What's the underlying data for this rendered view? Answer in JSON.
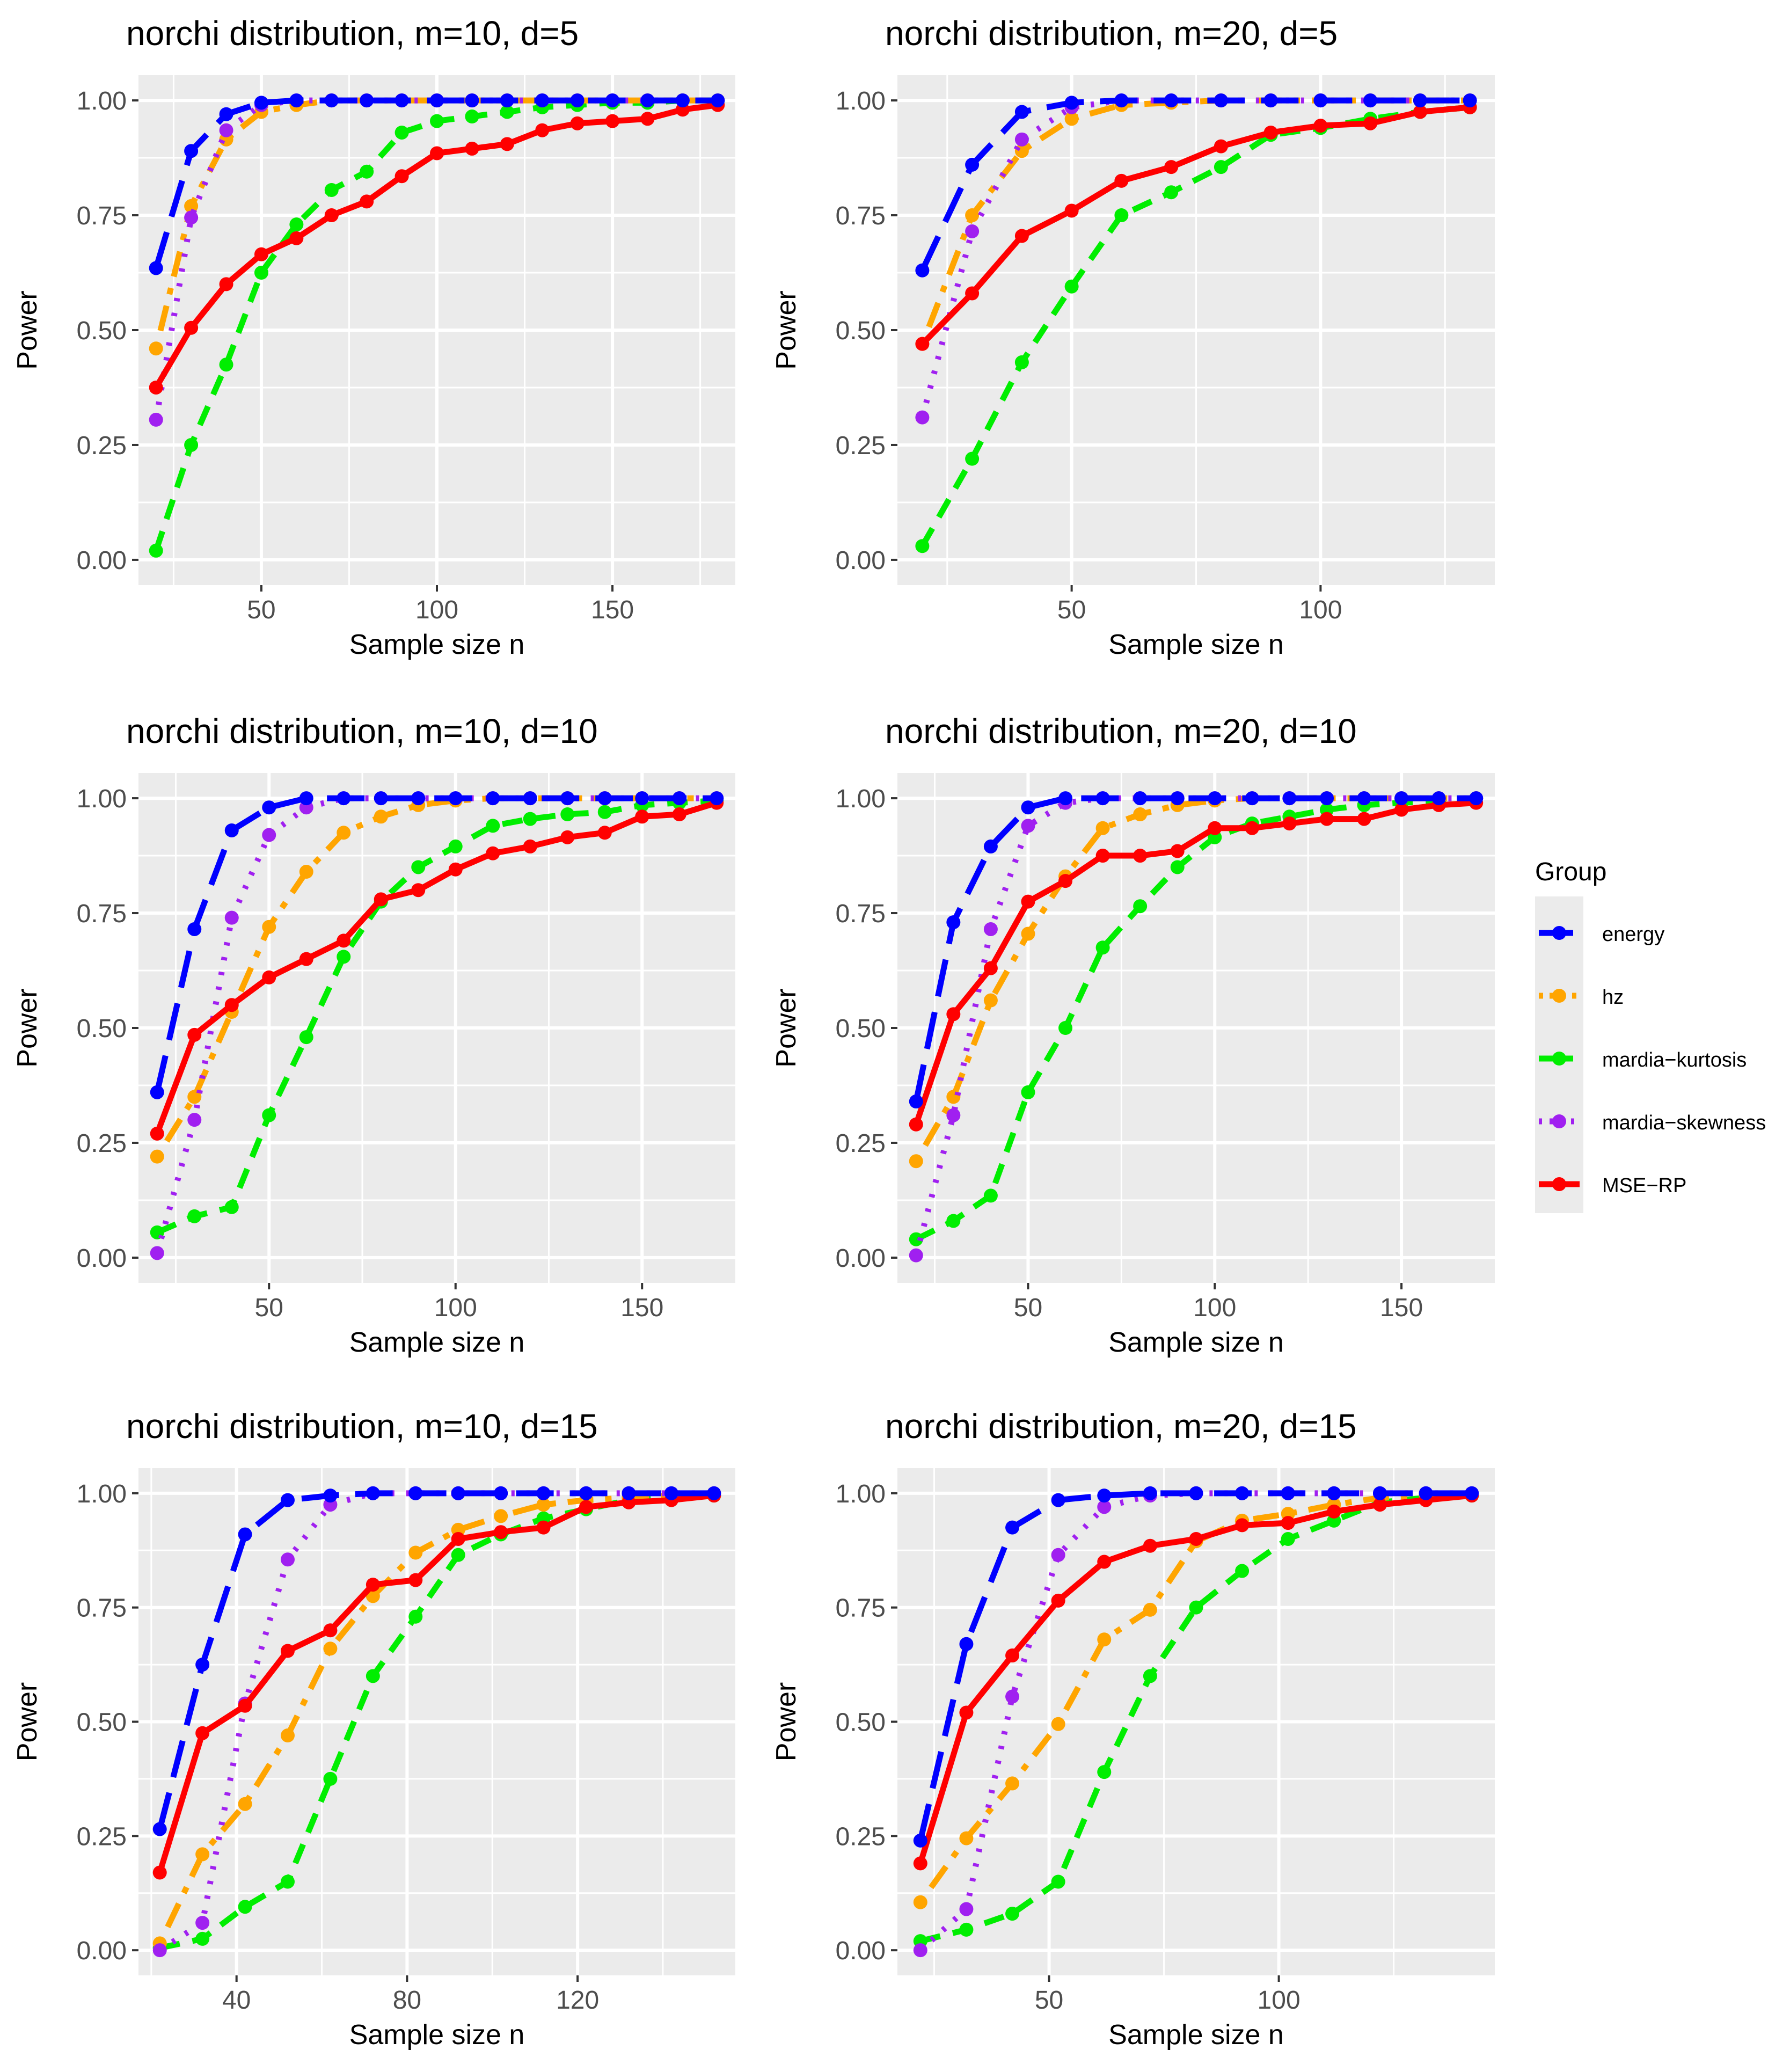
{
  "legend": {
    "title": "Group",
    "entries": [
      {
        "label": "energy",
        "color": "#0000ff",
        "dash": "long-dash"
      },
      {
        "label": "hz",
        "color": "#ffa500",
        "dash": "dot-dash"
      },
      {
        "label": "mardia−kurtosis",
        "color": "#00ee00",
        "dash": "dashed"
      },
      {
        "label": "mardia−skewness",
        "color": "#a020f0",
        "dash": "dotted"
      },
      {
        "label": "MSE−RP",
        "color": "#ff0000",
        "dash": "solid"
      }
    ]
  },
  "chart_data": [
    {
      "type": "line",
      "title": "norchi distribution, m=10, d=5",
      "xlabel": "Sample size n",
      "ylabel": "Power",
      "xlim": [
        15,
        185
      ],
      "ylim": [
        0,
        1
      ],
      "xticks": [
        50,
        100,
        150
      ],
      "xtick_labels": [
        "50",
        "100",
        "150"
      ],
      "yticks": [
        0,
        0.25,
        0.5,
        0.75,
        1
      ],
      "ytick_labels": [
        "0.00",
        "0.25",
        "0.50",
        "0.75",
        "1.00"
      ],
      "grid": true,
      "x": [
        20,
        30,
        40,
        50,
        60,
        70,
        80,
        90,
        100,
        110,
        120,
        130,
        140,
        150,
        160,
        170,
        180
      ],
      "series": [
        {
          "name": "energy",
          "values": [
            0.635,
            0.89,
            0.97,
            0.995,
            1,
            1,
            1,
            1,
            1,
            1,
            1,
            1,
            1,
            1,
            1,
            1,
            1
          ]
        },
        {
          "name": "hz",
          "values": [
            0.46,
            0.77,
            0.915,
            0.975,
            0.99,
            1,
            1,
            1,
            1,
            1,
            1,
            1,
            1,
            1,
            1,
            1,
            1
          ]
        },
        {
          "name": "mardia−kurtosis",
          "values": [
            0.02,
            0.25,
            0.425,
            0.625,
            0.73,
            0.805,
            0.845,
            0.93,
            0.955,
            0.965,
            0.975,
            0.985,
            0.99,
            0.995,
            0.995,
            1,
            1
          ]
        },
        {
          "name": "mardia−skewness",
          "values": [
            0.305,
            0.745,
            0.935,
            0.99,
            1,
            1,
            1,
            1,
            1,
            1,
            1,
            1,
            1,
            1,
            1,
            1,
            1
          ]
        },
        {
          "name": "MSE−RP",
          "values": [
            0.375,
            0.505,
            0.6,
            0.665,
            0.7,
            0.75,
            0.78,
            0.835,
            0.885,
            0.895,
            0.905,
            0.935,
            0.95,
            0.955,
            0.96,
            0.98,
            0.99
          ]
        }
      ]
    },
    {
      "type": "line",
      "title": "norchi distribution, m=20, d=5",
      "xlabel": "Sample size n",
      "ylabel": "Power",
      "xlim": [
        15,
        135
      ],
      "ylim": [
        0,
        1
      ],
      "xticks": [
        50,
        100
      ],
      "xtick_labels": [
        "50",
        "100"
      ],
      "yticks": [
        0,
        0.25,
        0.5,
        0.75,
        1
      ],
      "ytick_labels": [
        "0.00",
        "0.25",
        "0.50",
        "0.75",
        "1.00"
      ],
      "grid": true,
      "x": [
        20,
        30,
        40,
        50,
        60,
        70,
        80,
        90,
        100,
        110,
        120,
        130
      ],
      "series": [
        {
          "name": "energy",
          "values": [
            0.63,
            0.86,
            0.975,
            0.995,
            1,
            1,
            1,
            1,
            1,
            1,
            1,
            1
          ]
        },
        {
          "name": "hz",
          "values": [
            0.47,
            0.75,
            0.89,
            0.96,
            0.99,
            0.995,
            1,
            1,
            1,
            1,
            1,
            1
          ]
        },
        {
          "name": "mardia−kurtosis",
          "values": [
            0.03,
            0.22,
            0.43,
            0.595,
            0.75,
            0.8,
            0.855,
            0.925,
            0.94,
            0.96,
            0.975,
            0.985
          ]
        },
        {
          "name": "mardia−skewness",
          "values": [
            0.31,
            0.715,
            0.915,
            0.985,
            1,
            1,
            1,
            1,
            1,
            1,
            1,
            1
          ]
        },
        {
          "name": "MSE−RP",
          "values": [
            0.47,
            0.58,
            0.705,
            0.76,
            0.825,
            0.855,
            0.9,
            0.93,
            0.945,
            0.95,
            0.975,
            0.985
          ]
        }
      ]
    },
    {
      "type": "line",
      "title": "norchi distribution, m=10, d=10",
      "xlabel": "Sample size n",
      "ylabel": "Power",
      "xlim": [
        15,
        175
      ],
      "ylim": [
        0,
        1
      ],
      "xticks": [
        50,
        100,
        150
      ],
      "xtick_labels": [
        "50",
        "100",
        "150"
      ],
      "yticks": [
        0,
        0.25,
        0.5,
        0.75,
        1
      ],
      "ytick_labels": [
        "0.00",
        "0.25",
        "0.50",
        "0.75",
        "1.00"
      ],
      "grid": true,
      "x": [
        20,
        30,
        40,
        50,
        60,
        70,
        80,
        90,
        100,
        110,
        120,
        130,
        140,
        150,
        160,
        170
      ],
      "series": [
        {
          "name": "energy",
          "values": [
            0.36,
            0.715,
            0.93,
            0.98,
            1,
            1,
            1,
            1,
            1,
            1,
            1,
            1,
            1,
            1,
            1,
            1
          ]
        },
        {
          "name": "hz",
          "values": [
            0.22,
            0.35,
            0.535,
            0.72,
            0.84,
            0.925,
            0.96,
            0.985,
            0.995,
            1,
            1,
            1,
            1,
            1,
            1,
            1
          ]
        },
        {
          "name": "mardia−kurtosis",
          "values": [
            0.055,
            0.09,
            0.11,
            0.31,
            0.48,
            0.655,
            0.775,
            0.85,
            0.895,
            0.94,
            0.955,
            0.965,
            0.97,
            0.985,
            0.99,
            0.995
          ]
        },
        {
          "name": "mardia−skewness",
          "values": [
            0.01,
            0.3,
            0.74,
            0.92,
            0.98,
            1,
            1,
            1,
            1,
            1,
            1,
            1,
            1,
            1,
            1,
            1
          ]
        },
        {
          "name": "MSE−RP",
          "values": [
            0.27,
            0.485,
            0.55,
            0.61,
            0.65,
            0.69,
            0.78,
            0.8,
            0.845,
            0.88,
            0.895,
            0.915,
            0.925,
            0.96,
            0.965,
            0.99
          ]
        }
      ]
    },
    {
      "type": "line",
      "title": "norchi distribution, m=20, d=10",
      "xlabel": "Sample size n",
      "ylabel": "Power",
      "xlim": [
        15,
        175
      ],
      "ylim": [
        0,
        1
      ],
      "xticks": [
        50,
        100,
        150
      ],
      "xtick_labels": [
        "50",
        "100",
        "150"
      ],
      "yticks": [
        0,
        0.25,
        0.5,
        0.75,
        1
      ],
      "ytick_labels": [
        "0.00",
        "0.25",
        "0.50",
        "0.75",
        "1.00"
      ],
      "grid": true,
      "x": [
        20,
        30,
        40,
        50,
        60,
        70,
        80,
        90,
        100,
        110,
        120,
        130,
        140,
        150,
        160,
        170
      ],
      "series": [
        {
          "name": "energy",
          "values": [
            0.34,
            0.73,
            0.895,
            0.98,
            1,
            1,
            1,
            1,
            1,
            1,
            1,
            1,
            1,
            1,
            1,
            1
          ]
        },
        {
          "name": "hz",
          "values": [
            0.21,
            0.35,
            0.56,
            0.705,
            0.83,
            0.935,
            0.965,
            0.985,
            0.995,
            1,
            1,
            1,
            1,
            1,
            1,
            1
          ]
        },
        {
          "name": "mardia−kurtosis",
          "values": [
            0.04,
            0.08,
            0.135,
            0.36,
            0.5,
            0.675,
            0.765,
            0.85,
            0.915,
            0.945,
            0.96,
            0.975,
            0.985,
            0.99,
            0.995,
            1
          ]
        },
        {
          "name": "mardia−skewness",
          "values": [
            0.005,
            0.31,
            0.715,
            0.94,
            0.99,
            1,
            1,
            1,
            1,
            1,
            1,
            1,
            1,
            1,
            1,
            1
          ]
        },
        {
          "name": "MSE−RP",
          "values": [
            0.29,
            0.53,
            0.63,
            0.775,
            0.82,
            0.875,
            0.875,
            0.885,
            0.935,
            0.935,
            0.945,
            0.955,
            0.955,
            0.975,
            0.985,
            0.99
          ]
        }
      ]
    },
    {
      "type": "line",
      "title": "norchi distribution, m=10, d=15",
      "xlabel": "Sample size n",
      "ylabel": "Power",
      "xlim": [
        17,
        157
      ],
      "ylim": [
        0,
        1
      ],
      "xticks": [
        40,
        80,
        120
      ],
      "xtick_labels": [
        "40",
        "80",
        "120"
      ],
      "yticks": [
        0,
        0.25,
        0.5,
        0.75,
        1
      ],
      "ytick_labels": [
        "0.00",
        "0.25",
        "0.50",
        "0.75",
        "1.00"
      ],
      "grid": true,
      "x": [
        22,
        32,
        42,
        52,
        62,
        72,
        82,
        92,
        102,
        112,
        122,
        132,
        142,
        152
      ],
      "series": [
        {
          "name": "energy",
          "values": [
            0.265,
            0.625,
            0.91,
            0.985,
            0.995,
            1,
            1,
            1,
            1,
            1,
            1,
            1,
            1,
            1
          ]
        },
        {
          "name": "hz",
          "values": [
            0.015,
            0.21,
            0.32,
            0.47,
            0.66,
            0.775,
            0.87,
            0.92,
            0.95,
            0.975,
            0.985,
            0.99,
            0.995,
            1
          ]
        },
        {
          "name": "mardia−kurtosis",
          "values": [
            0.005,
            0.025,
            0.095,
            0.15,
            0.375,
            0.6,
            0.73,
            0.865,
            0.91,
            0.945,
            0.965,
            0.985,
            0.99,
            0.995
          ]
        },
        {
          "name": "mardia−skewness",
          "values": [
            0.0,
            0.06,
            0.54,
            0.855,
            0.975,
            1,
            1,
            1,
            1,
            1,
            1,
            1,
            1,
            1
          ]
        },
        {
          "name": "MSE−RP",
          "values": [
            0.17,
            0.475,
            0.535,
            0.655,
            0.7,
            0.8,
            0.81,
            0.9,
            0.915,
            0.925,
            0.97,
            0.98,
            0.985,
            0.995
          ]
        }
      ]
    },
    {
      "type": "line",
      "title": "norchi distribution, m=20, d=15",
      "xlabel": "Sample size n",
      "ylabel": "Power",
      "xlim": [
        17,
        147
      ],
      "ylim": [
        0,
        1
      ],
      "xticks": [
        50,
        100
      ],
      "xtick_labels": [
        "50",
        "100"
      ],
      "yticks": [
        0,
        0.25,
        0.5,
        0.75,
        1
      ],
      "ytick_labels": [
        "0.00",
        "0.25",
        "0.50",
        "0.75",
        "1.00"
      ],
      "grid": true,
      "x": [
        22,
        32,
        42,
        52,
        62,
        72,
        82,
        92,
        102,
        112,
        122,
        132,
        142
      ],
      "series": [
        {
          "name": "energy",
          "values": [
            0.24,
            0.67,
            0.925,
            0.985,
            0.995,
            1,
            1,
            1,
            1,
            1,
            1,
            1,
            1
          ]
        },
        {
          "name": "hz",
          "values": [
            0.105,
            0.245,
            0.365,
            0.495,
            0.68,
            0.745,
            0.895,
            0.94,
            0.955,
            0.975,
            0.99,
            0.995,
            1
          ]
        },
        {
          "name": "mardia−kurtosis",
          "values": [
            0.02,
            0.045,
            0.08,
            0.15,
            0.39,
            0.6,
            0.75,
            0.83,
            0.9,
            0.94,
            0.98,
            0.99,
            0.995
          ]
        },
        {
          "name": "mardia−skewness",
          "values": [
            0.0,
            0.09,
            0.555,
            0.865,
            0.97,
            0.995,
            1,
            1,
            1,
            1,
            1,
            1,
            1
          ]
        },
        {
          "name": "MSE−RP",
          "values": [
            0.19,
            0.52,
            0.645,
            0.765,
            0.85,
            0.885,
            0.9,
            0.93,
            0.935,
            0.96,
            0.975,
            0.985,
            0.995
          ]
        }
      ]
    }
  ]
}
